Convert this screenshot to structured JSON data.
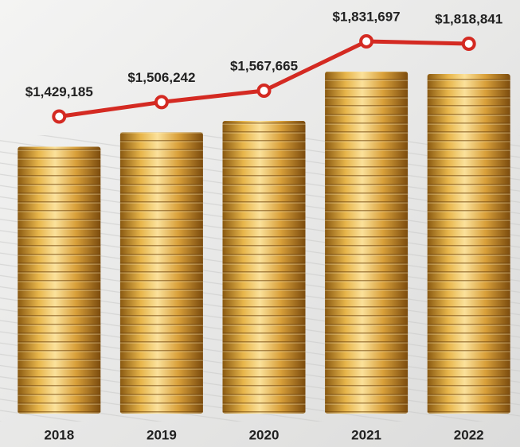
{
  "chart_data": {
    "type": "line",
    "categories": [
      "2018",
      "2019",
      "2020",
      "2021",
      "2022"
    ],
    "values": [
      1429185,
      1506242,
      1567665,
      1831697,
      1818841
    ],
    "value_labels": [
      "$1,429,185",
      "$1,506,242",
      "$1,567,665",
      "$1,831,697",
      "$1,818,841"
    ],
    "color": "#d42a22"
  }
}
